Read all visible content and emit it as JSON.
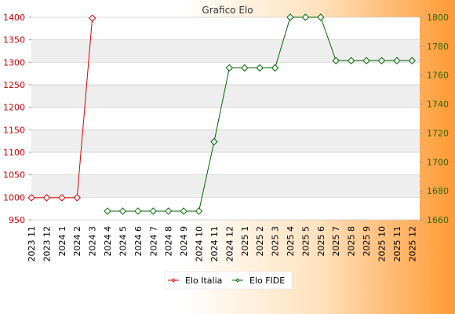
{
  "colors": {
    "italia": "#dd0000",
    "fide": "#006600",
    "band": "#eeeeee",
    "grid": "#cccccc",
    "axis_left_text": "#cc0000",
    "axis_right_text": "#336600",
    "bottom_text": "#000000"
  },
  "chart_data": {
    "type": "line",
    "title": "Grafico Elo",
    "categories": [
      "2023 11",
      "2023 12",
      "2024 1",
      "2024 2",
      "2024 3",
      "2024 4",
      "2024 5",
      "2024 6",
      "2024 7",
      "2024 8",
      "2024 9",
      "2024 10",
      "2024 11",
      "2024 12",
      "2025 1",
      "2025 2",
      "2025 3",
      "2025 4",
      "2025 5",
      "2025 6",
      "2025 7",
      "2025 8",
      "2025 9",
      "2025 10",
      "2025 11",
      "2025 12"
    ],
    "y_left": {
      "ticks": [
        950,
        1000,
        1050,
        1100,
        1150,
        1200,
        1250,
        1300,
        1350,
        1400
      ],
      "range": [
        950,
        1400
      ]
    },
    "y_right": {
      "ticks": [
        1660,
        1680,
        1700,
        1720,
        1740,
        1760,
        1780,
        1800
      ],
      "range": [
        1660,
        1800
      ]
    },
    "grid": true,
    "legend_position": "bottom-center",
    "series": [
      {
        "name": "Elo Italia",
        "axis": "left",
        "values": [
          999,
          999,
          999,
          999,
          1398,
          null,
          null,
          null,
          null,
          null,
          null,
          null,
          null,
          null,
          null,
          null,
          null,
          null,
          null,
          null,
          null,
          null,
          null,
          null,
          null,
          null
        ]
      },
      {
        "name": "Elo FIDE",
        "axis": "right",
        "values": [
          null,
          null,
          null,
          null,
          null,
          1666,
          1666,
          1666,
          1666,
          1666,
          1666,
          1666,
          1714,
          1765,
          1765,
          1765,
          1765,
          1800,
          1800,
          1800,
          1770,
          1770,
          1770,
          1770,
          1770,
          1770
        ]
      }
    ]
  }
}
